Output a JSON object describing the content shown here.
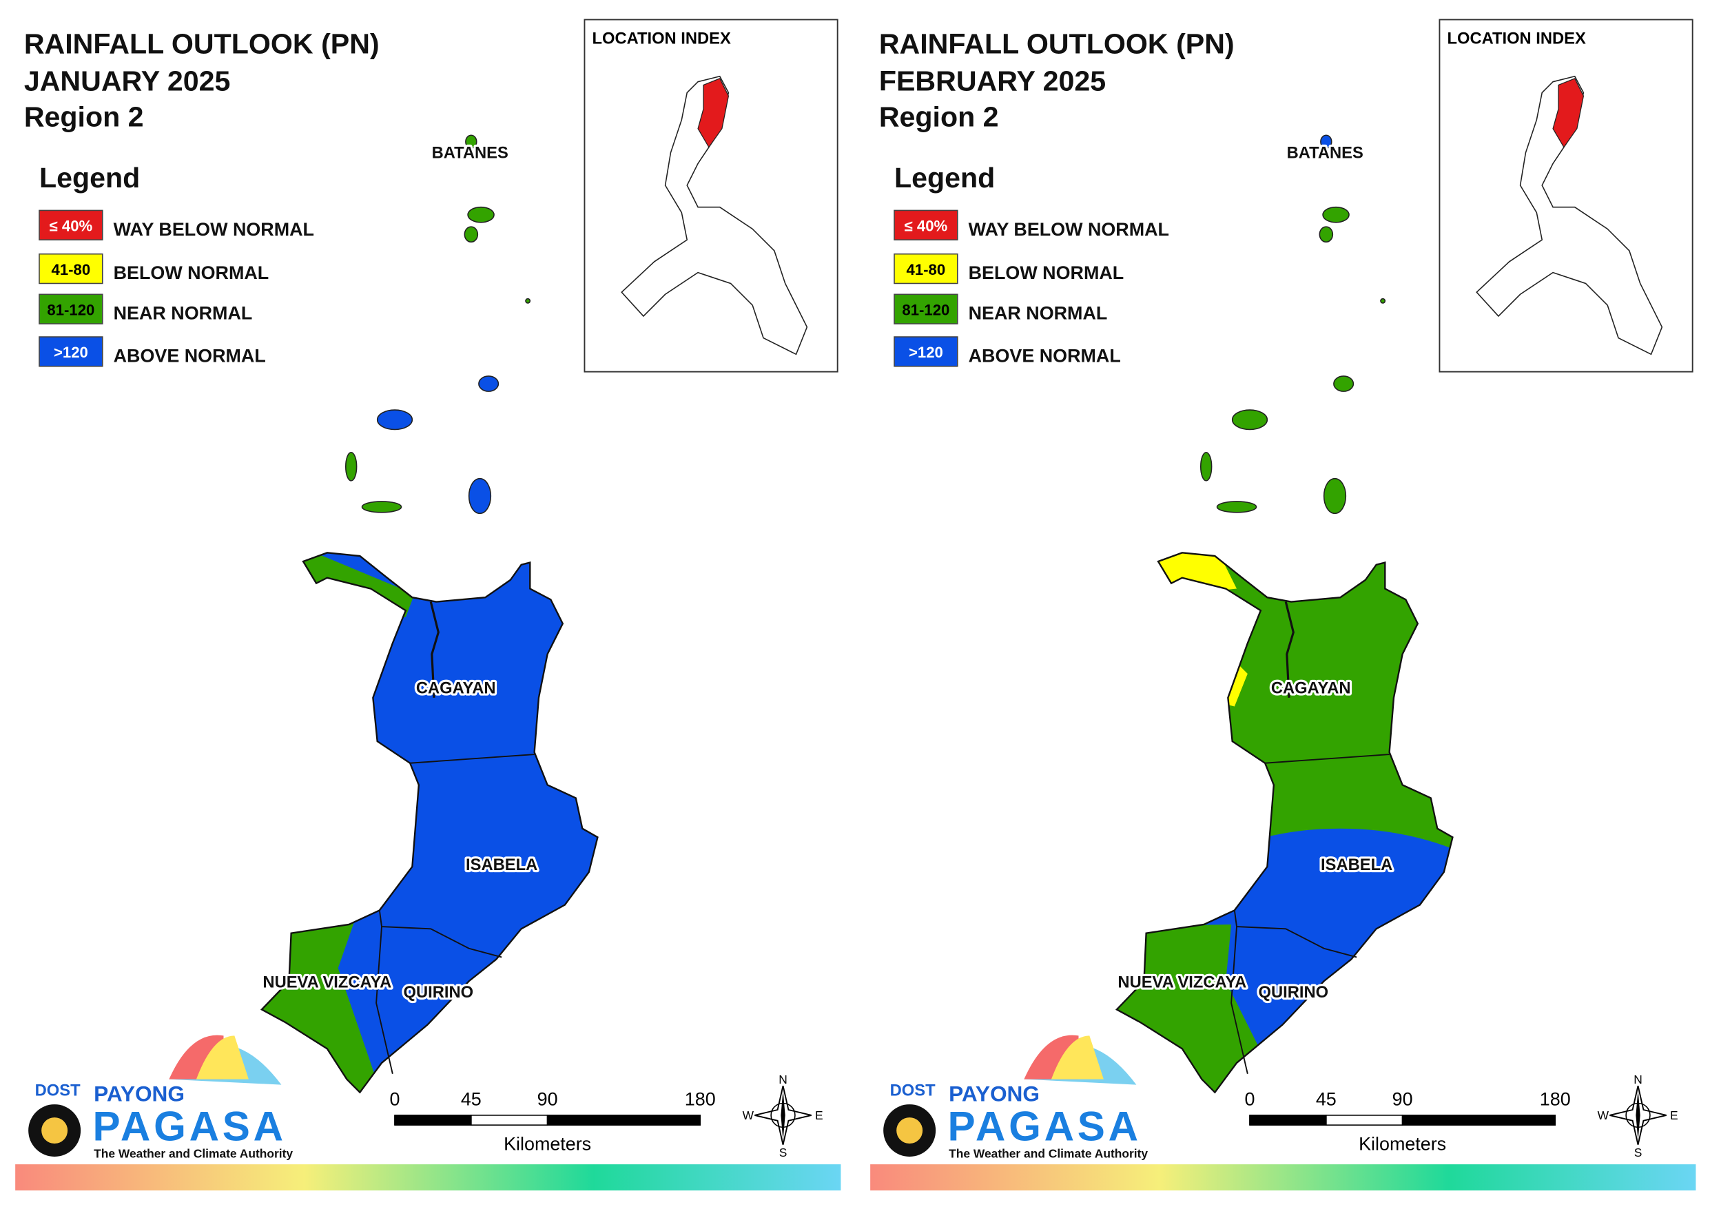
{
  "panels": [
    {
      "title": "RAINFALL OUTLOOK (PN)",
      "month": "JANUARY 2025",
      "region": "Region 2",
      "legend_title": "Legend",
      "legend": [
        {
          "range": "≤ 40%",
          "label": "WAY BELOW NORMAL",
          "color": "#e31a1c"
        },
        {
          "range": "41-80",
          "label": "BELOW NORMAL",
          "color": "#ffff00"
        },
        {
          "range": "81-120",
          "label": "NEAR NORMAL",
          "color": "#33a300"
        },
        {
          "range": ">120",
          "label": "ABOVE NORMAL",
          "color": "#0a50e6"
        }
      ],
      "location_index": "LOCATION INDEX",
      "provinces": [
        "BATANES",
        "CAGAYAN",
        "ISABELA",
        "NUEVA VIZCAYA",
        "QUIRINO"
      ],
      "scale": {
        "ticks": [
          0,
          45,
          90,
          180
        ],
        "unit": "Kilometers"
      },
      "compass": [
        "N",
        "W",
        "E",
        "S"
      ],
      "logo": {
        "org": "DOST",
        "name1": "PAYONG",
        "name2": "PAGASA",
        "tagline": "The Weather and Climate Authority"
      }
    },
    {
      "title": "RAINFALL OUTLOOK (PN)",
      "month": "FEBRUARY 2025",
      "region": "Region 2",
      "legend_title": "Legend",
      "legend": [
        {
          "range": "≤ 40%",
          "label": "WAY BELOW NORMAL",
          "color": "#e31a1c"
        },
        {
          "range": "41-80",
          "label": "BELOW NORMAL",
          "color": "#ffff00"
        },
        {
          "range": "81-120",
          "label": "NEAR NORMAL",
          "color": "#33a300"
        },
        {
          "range": ">120",
          "label": "ABOVE NORMAL",
          "color": "#0a50e6"
        }
      ],
      "location_index": "LOCATION INDEX",
      "provinces": [
        "BATANES",
        "CAGAYAN",
        "ISABELA",
        "NUEVA VIZCAYA",
        "QUIRINO"
      ],
      "scale": {
        "ticks": [
          0,
          45,
          90,
          180
        ],
        "unit": "Kilometers"
      },
      "compass": [
        "N",
        "W",
        "E",
        "S"
      ],
      "logo": {
        "org": "DOST",
        "name1": "PAYONG",
        "name2": "PAGASA",
        "tagline": "The Weather and Climate Authority"
      }
    }
  ]
}
